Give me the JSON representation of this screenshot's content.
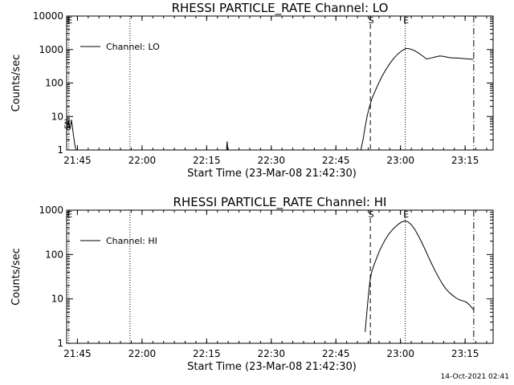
{
  "timestamp": "14-Oct-2021 02:41",
  "chart_data": [
    {
      "type": "line",
      "title": "RHESSI PARTICLE_RATE Channel: LO",
      "xlabel": "Start Time (23-Mar-08 21:42:30)",
      "ylabel": "Counts/sec",
      "x_unit": "minutes after 21:42:30",
      "xlim": [
        0,
        99
      ],
      "ylim": [
        1,
        10000
      ],
      "y_scale": "log",
      "x_ticks": [
        {
          "t": 2.5,
          "label": "21:45"
        },
        {
          "t": 17.5,
          "label": "22:00"
        },
        {
          "t": 32.5,
          "label": "22:15"
        },
        {
          "t": 47.5,
          "label": "22:30"
        },
        {
          "t": 62.5,
          "label": "22:45"
        },
        {
          "t": 77.5,
          "label": "23:00"
        },
        {
          "t": 92.5,
          "label": "23:15"
        }
      ],
      "y_ticks": [
        {
          "v": 1,
          "label": "1"
        },
        {
          "v": 10,
          "label": "10"
        },
        {
          "v": 100,
          "label": "100"
        },
        {
          "v": 1000,
          "label": "1000"
        },
        {
          "v": 10000,
          "label": "10000"
        }
      ],
      "legend": {
        "label": "Channel: LO",
        "position": "top-left"
      },
      "markers": [
        {
          "t": 0.5,
          "label": "E",
          "style": "dotted"
        },
        {
          "t": 14.7,
          "label": "",
          "style": "dotted"
        },
        {
          "t": 70.5,
          "label": "S",
          "style": "dashed"
        },
        {
          "t": 78.6,
          "label": "E",
          "style": "dotted"
        },
        {
          "t": 94.5,
          "label": "",
          "style": "dashdot"
        }
      ],
      "side_label": "EN",
      "series": [
        {
          "x": [
            0.0,
            0.4,
            0.8,
            1.1,
            1.3,
            1.6,
            1.9,
            2.3
          ],
          "y": [
            3.8,
            7.0,
            4.2,
            8.0,
            5.2,
            2.6,
            1.4,
            0.9
          ]
        },
        {
          "x": [
            37.1,
            37.25,
            37.4
          ],
          "y": [
            1.0,
            1.8,
            1.0
          ]
        },
        {
          "x": [
            68.3,
            68.8,
            69.3,
            69.8,
            70.4,
            71.0,
            72.0,
            73.0,
            74.0,
            75.0,
            76.0,
            77.0,
            78.0,
            78.8,
            79.6,
            80.6,
            81.6,
            82.6,
            83.6,
            84.6,
            85.6,
            86.6,
            87.6,
            88.6,
            89.6,
            90.6,
            91.6,
            92.6,
            93.6,
            94.4
          ],
          "y": [
            1.0,
            2.0,
            5.0,
            11.0,
            22.0,
            38.0,
            75.0,
            140.0,
            240.0,
            380.0,
            560.0,
            760.0,
            960.0,
            1080.0,
            1050.0,
            950.0,
            800.0,
            650.0,
            520.0,
            560.0,
            600.0,
            640.0,
            620.0,
            580.0,
            560.0,
            560.0,
            545.0,
            530.0,
            520.0,
            510.0
          ]
        }
      ]
    },
    {
      "type": "line",
      "title": "RHESSI PARTICLE_RATE Channel: HI",
      "xlabel": "Start Time (23-Mar-08 21:42:30)",
      "ylabel": "Counts/sec",
      "x_unit": "minutes after 21:42:30",
      "xlim": [
        0,
        99
      ],
      "ylim": [
        1,
        1000
      ],
      "y_scale": "log",
      "x_ticks": [
        {
          "t": 2.5,
          "label": "21:45"
        },
        {
          "t": 17.5,
          "label": "22:00"
        },
        {
          "t": 32.5,
          "label": "22:15"
        },
        {
          "t": 47.5,
          "label": "22:30"
        },
        {
          "t": 62.5,
          "label": "22:45"
        },
        {
          "t": 77.5,
          "label": "23:00"
        },
        {
          "t": 92.5,
          "label": "23:15"
        }
      ],
      "y_ticks": [
        {
          "v": 1,
          "label": "1"
        },
        {
          "v": 10,
          "label": "10"
        },
        {
          "v": 100,
          "label": "100"
        },
        {
          "v": 1000,
          "label": "1000"
        }
      ],
      "legend": {
        "label": "Channel: HI",
        "position": "top-left"
      },
      "markers": [
        {
          "t": 0.5,
          "label": "E",
          "style": "dotted"
        },
        {
          "t": 14.7,
          "label": "",
          "style": "dotted"
        },
        {
          "t": 70.5,
          "label": "S",
          "style": "dashed"
        },
        {
          "t": 78.6,
          "label": "E",
          "style": "dotted"
        },
        {
          "t": 94.5,
          "label": "",
          "style": "dashdot"
        }
      ],
      "series": [
        {
          "x": [
            69.3,
            69.6,
            70.0,
            70.4,
            70.8,
            71.4,
            72.0,
            72.6,
            73.3,
            74.0,
            74.8,
            75.6,
            76.4,
            77.2,
            77.9,
            78.6,
            79.3,
            80.0,
            80.8,
            81.6,
            82.4,
            83.2,
            84.0,
            84.8,
            85.6,
            86.4,
            87.2,
            88.0,
            88.8,
            89.6,
            90.4,
            91.2,
            92.0,
            92.8,
            93.6,
            94.4
          ],
          "y": [
            1.8,
            4.0,
            11.0,
            25.0,
            40.0,
            60.0,
            85.0,
            120.0,
            165.0,
            220.0,
            290.0,
            360.0,
            430.0,
            500.0,
            550.0,
            570.0,
            540.0,
            470.0,
            370.0,
            270.0,
            190.0,
            130.0,
            88.0,
            60.0,
            42.0,
            30.0,
            22.0,
            17.0,
            14.0,
            12.0,
            10.5,
            9.5,
            9.0,
            8.5,
            7.2,
            5.8
          ]
        }
      ]
    }
  ]
}
